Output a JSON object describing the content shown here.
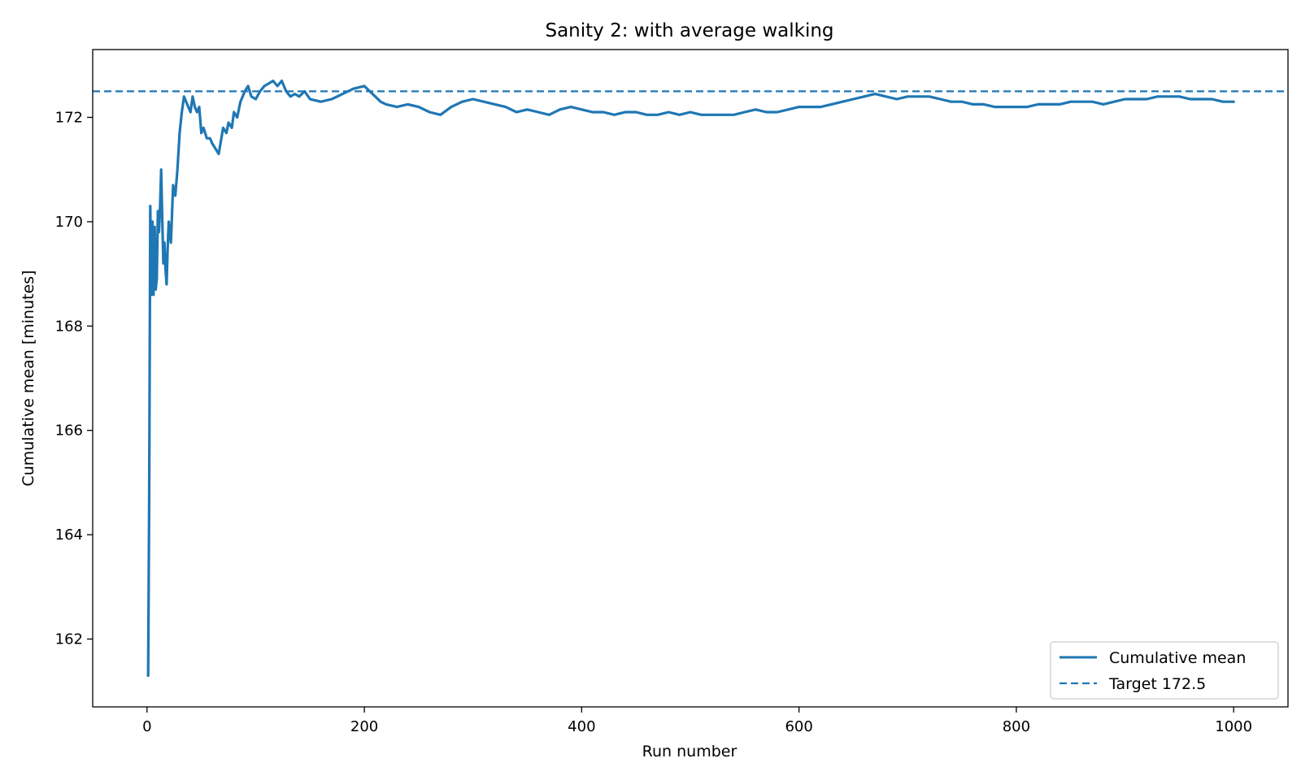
{
  "chart_data": {
    "type": "line",
    "title": "Sanity 2: with average walking",
    "xlabel": "Run number",
    "ylabel": "Cumulative mean [minutes]",
    "xlim": [
      -50,
      1050
    ],
    "ylim": [
      160.7,
      173.3
    ],
    "xticks": [
      0,
      200,
      400,
      600,
      800,
      1000
    ],
    "yticks": [
      162,
      164,
      166,
      168,
      170,
      172
    ],
    "grid": false,
    "legend": {
      "placement": "lower-right"
    },
    "colors": {
      "series": "#1f77b4"
    },
    "series": [
      {
        "name": "Cumulative mean",
        "style": "solid",
        "x": [
          1,
          2,
          3,
          4,
          5,
          6,
          7,
          8,
          9,
          10,
          11,
          12,
          13,
          14,
          15,
          16,
          17,
          18,
          19,
          20,
          22,
          24,
          26,
          28,
          30,
          32,
          34,
          36,
          38,
          40,
          42,
          44,
          46,
          48,
          50,
          52,
          55,
          58,
          60,
          63,
          66,
          70,
          73,
          75,
          78,
          80,
          83,
          86,
          90,
          93,
          96,
          100,
          104,
          108,
          112,
          116,
          120,
          124,
          128,
          132,
          136,
          140,
          145,
          150,
          160,
          170,
          180,
          190,
          200,
          205,
          210,
          215,
          220,
          230,
          240,
          250,
          260,
          270,
          280,
          290,
          300,
          310,
          320,
          330,
          340,
          350,
          360,
          370,
          380,
          390,
          400,
          410,
          420,
          430,
          440,
          450,
          460,
          470,
          480,
          490,
          500,
          510,
          520,
          530,
          540,
          550,
          560,
          570,
          580,
          590,
          600,
          610,
          620,
          630,
          640,
          650,
          660,
          670,
          680,
          690,
          700,
          710,
          720,
          730,
          740,
          750,
          760,
          770,
          780,
          790,
          800,
          810,
          820,
          830,
          840,
          850,
          860,
          870,
          880,
          890,
          900,
          910,
          920,
          930,
          940,
          950,
          960,
          970,
          980,
          990,
          1000
        ],
        "y": [
          161.3,
          164.8,
          170.3,
          168.6,
          170.0,
          168.6,
          169.9,
          168.7,
          168.9,
          170.2,
          169.8,
          170.3,
          171.0,
          170.1,
          169.2,
          169.6,
          169.1,
          168.8,
          169.5,
          170.0,
          169.6,
          170.7,
          170.5,
          171.0,
          171.7,
          172.1,
          172.4,
          172.3,
          172.2,
          172.1,
          172.4,
          172.2,
          172.1,
          172.2,
          171.7,
          171.8,
          171.6,
          171.6,
          171.5,
          171.4,
          171.3,
          171.8,
          171.7,
          171.9,
          171.8,
          172.1,
          172.0,
          172.3,
          172.5,
          172.6,
          172.4,
          172.35,
          172.5,
          172.6,
          172.65,
          172.7,
          172.6,
          172.7,
          172.5,
          172.4,
          172.45,
          172.4,
          172.5,
          172.35,
          172.3,
          172.35,
          172.45,
          172.55,
          172.6,
          172.5,
          172.4,
          172.3,
          172.25,
          172.2,
          172.25,
          172.2,
          172.1,
          172.05,
          172.2,
          172.3,
          172.35,
          172.3,
          172.25,
          172.2,
          172.1,
          172.15,
          172.1,
          172.05,
          172.15,
          172.2,
          172.15,
          172.1,
          172.1,
          172.05,
          172.1,
          172.1,
          172.05,
          172.05,
          172.1,
          172.05,
          172.1,
          172.05,
          172.05,
          172.05,
          172.05,
          172.1,
          172.15,
          172.1,
          172.1,
          172.15,
          172.2,
          172.2,
          172.2,
          172.25,
          172.3,
          172.35,
          172.4,
          172.45,
          172.4,
          172.35,
          172.4,
          172.4,
          172.4,
          172.35,
          172.3,
          172.3,
          172.25,
          172.25,
          172.2,
          172.2,
          172.2,
          172.2,
          172.25,
          172.25,
          172.25,
          172.3,
          172.3,
          172.3,
          172.25,
          172.3,
          172.35,
          172.35,
          172.35,
          172.4,
          172.4,
          172.4,
          172.35,
          172.35,
          172.35,
          172.3,
          172.3
        ]
      },
      {
        "name": "Target 172.5",
        "style": "dashed",
        "value": 172.5
      }
    ]
  }
}
